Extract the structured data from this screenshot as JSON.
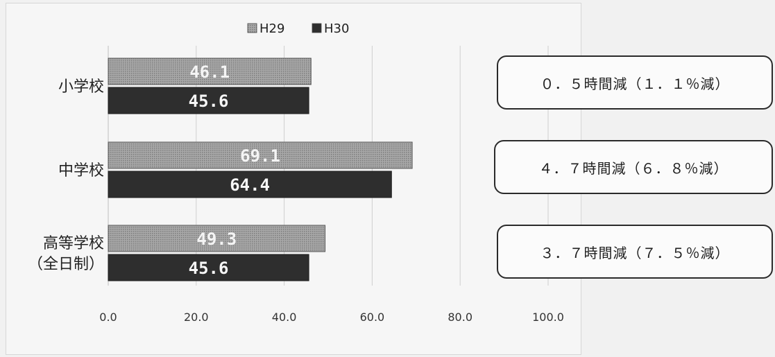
{
  "chart_data": {
    "type": "bar",
    "orientation": "horizontal",
    "categories": [
      "小学校",
      "中学校",
      "高等学校（全日制）"
    ],
    "category_label_lines": [
      [
        "小学校"
      ],
      [
        "中学校"
      ],
      [
        "高等学校",
        "（全日制）"
      ]
    ],
    "series": [
      {
        "name": "H29",
        "values": [
          46.1,
          69.1,
          49.3
        ],
        "labels": [
          "46.1",
          "69.1",
          "49.3"
        ],
        "fill": "#a8a8a8",
        "pattern": "dotted"
      },
      {
        "name": "H30",
        "values": [
          45.6,
          64.4,
          45.6
        ],
        "labels": [
          "45.6",
          "64.4",
          "45.6"
        ],
        "fill": "#2e2e2e",
        "pattern": "solid"
      }
    ],
    "xlim": [
      0,
      100
    ],
    "xticks": [
      "0.0",
      "20.0",
      "40.0",
      "60.0",
      "80.0",
      "100.0"
    ],
    "grid": true,
    "legend_position": "top",
    "title": "",
    "xlabel": "",
    "ylabel": ""
  },
  "annotations": [
    "０．５時間減（１．１％減）",
    "４．７時間減（６．８％減）",
    "３．７時間減（７．５％減）"
  ],
  "colors": {
    "background": "#f1f1f1",
    "grid": "#c8c8c8",
    "h29_bar": "#a8a8a8",
    "h30_bar": "#2e2e2e"
  }
}
